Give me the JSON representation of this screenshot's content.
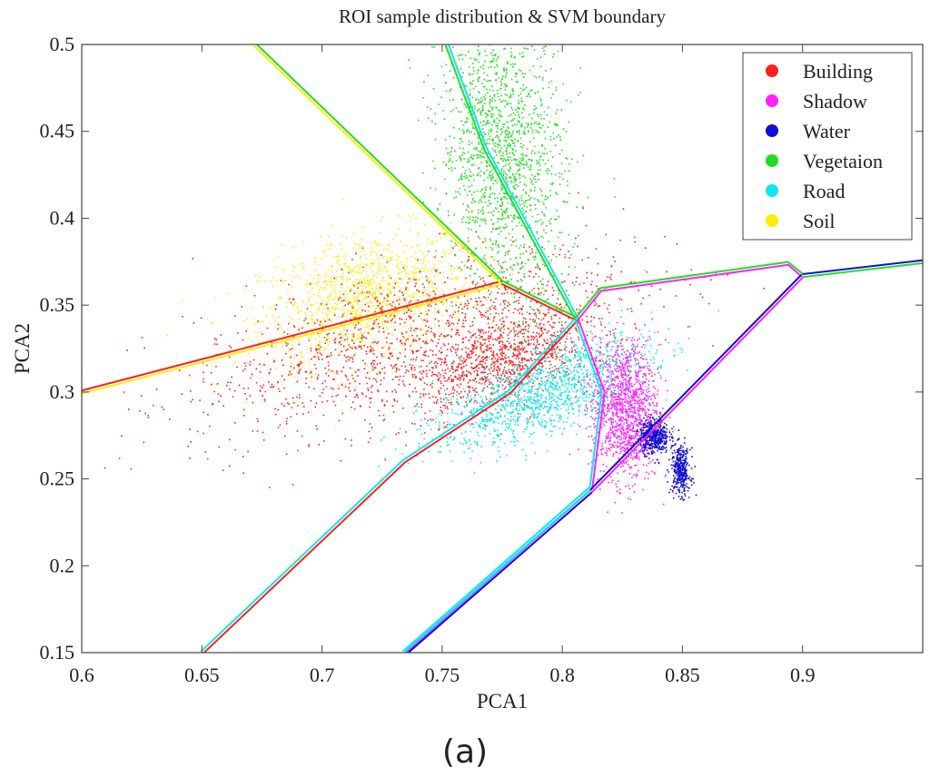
{
  "chart_data": {
    "type": "scatter",
    "title": "ROI sample distribution & SVM boundary",
    "xlabel": "PCA1",
    "ylabel": "PCA2",
    "xlim": [
      0.6,
      0.95
    ],
    "ylim": [
      0.15,
      0.5
    ],
    "xticks": [
      0.6,
      0.65,
      0.7,
      0.75,
      0.8,
      0.85,
      0.9
    ],
    "yticks": [
      0.15,
      0.2,
      0.25,
      0.3,
      0.35,
      0.4,
      0.45,
      0.5
    ],
    "xtick_labels": [
      "0.6",
      "0.65",
      "0.7",
      "0.75",
      "0.8",
      "0.85",
      "0.9"
    ],
    "ytick_labels": [
      "0.15",
      "0.2",
      "0.25",
      "0.3",
      "0.35",
      "0.4",
      "0.45",
      "0.5"
    ],
    "grid": false,
    "legend_position": "top-right",
    "series": [
      {
        "name": "Building",
        "color": "#ff2020",
        "clusters": [
          {
            "cx": 0.735,
            "cy": 0.33,
            "sx": 0.045,
            "sy": 0.022,
            "n": 1400,
            "tilt": -0.35
          },
          {
            "cx": 0.775,
            "cy": 0.318,
            "sx": 0.018,
            "sy": 0.012,
            "n": 900,
            "tilt": -0.4
          }
        ]
      },
      {
        "name": "Shadow",
        "color": "#ff22ff",
        "clusters": [
          {
            "cx": 0.826,
            "cy": 0.29,
            "sx": 0.007,
            "sy": 0.02,
            "n": 1300,
            "tilt": 0.2
          }
        ]
      },
      {
        "name": "Water",
        "color": "#1010d0",
        "clusters": [
          {
            "cx": 0.838,
            "cy": 0.275,
            "sx": 0.003,
            "sy": 0.005,
            "n": 450,
            "tilt": 0
          },
          {
            "cx": 0.849,
            "cy": 0.255,
            "sx": 0.002,
            "sy": 0.007,
            "n": 350,
            "tilt": 0.3
          }
        ]
      },
      {
        "name": "Vegetaion",
        "color": "#22dd22",
        "clusters": [
          {
            "cx": 0.775,
            "cy": 0.435,
            "sx": 0.013,
            "sy": 0.04,
            "n": 1600,
            "tilt": 0.55
          }
        ]
      },
      {
        "name": "Road",
        "color": "#11e5f0",
        "clusters": [
          {
            "cx": 0.792,
            "cy": 0.3,
            "sx": 0.022,
            "sy": 0.012,
            "n": 1300,
            "tilt": -0.45
          }
        ]
      },
      {
        "name": "Soil",
        "color": "#ffee00",
        "clusters": [
          {
            "cx": 0.718,
            "cy": 0.355,
            "sx": 0.022,
            "sy": 0.018,
            "n": 1100,
            "tilt": -0.3
          }
        ]
      }
    ],
    "boundaries": [
      {
        "colors": [
          "#ff2020",
          "#ffee00"
        ],
        "points": [
          [
            0.6,
            0.3
          ],
          [
            0.775,
            0.363
          ]
        ]
      },
      {
        "colors": [
          "#22dd22",
          "#ffee00"
        ],
        "points": [
          [
            0.672,
            0.5
          ],
          [
            0.775,
            0.363
          ]
        ]
      },
      {
        "colors": [
          "#22dd22",
          "#ff2020"
        ],
        "points": [
          [
            0.775,
            0.363
          ],
          [
            0.806,
            0.342
          ]
        ]
      },
      {
        "colors": [
          "#ff2020",
          "#11e5f0"
        ],
        "points": [
          [
            0.806,
            0.342
          ],
          [
            0.778,
            0.3
          ],
          [
            0.734,
            0.26
          ],
          [
            0.65,
            0.15
          ]
        ]
      },
      {
        "colors": [
          "#22dd22",
          "#11e5f0"
        ],
        "points": [
          [
            0.806,
            0.342
          ],
          [
            0.768,
            0.44
          ],
          [
            0.752,
            0.5
          ]
        ]
      },
      {
        "colors": [
          "#ff22ff",
          "#11e5f0"
        ],
        "points": [
          [
            0.806,
            0.342
          ],
          [
            0.817,
            0.3
          ],
          [
            0.812,
            0.245
          ],
          [
            0.734,
            0.15
          ]
        ]
      },
      {
        "colors": [
          "#22dd22",
          "#ff22ff"
        ],
        "points": [
          [
            0.806,
            0.342
          ],
          [
            0.816,
            0.359
          ],
          [
            0.894,
            0.374
          ],
          [
            0.9,
            0.367
          ]
        ]
      },
      {
        "colors": [
          "#ff22ff",
          "#1010d0"
        ],
        "points": [
          [
            0.9,
            0.367
          ],
          [
            0.812,
            0.243
          ]
        ]
      },
      {
        "colors": [
          "#1010d0",
          "#22dd22"
        ],
        "points": [
          [
            0.9,
            0.367
          ],
          [
            0.95,
            0.375
          ]
        ]
      },
      {
        "colors": [
          "#1010d0",
          "#11e5f0"
        ],
        "points": [
          [
            0.812,
            0.243
          ],
          [
            0.735,
            0.15
          ]
        ]
      }
    ]
  },
  "figure": {
    "caption": "(a)"
  }
}
